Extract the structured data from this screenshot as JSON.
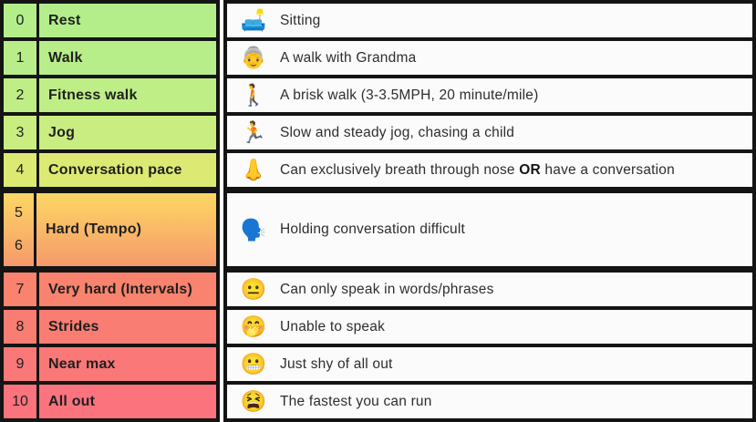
{
  "colors": {
    "border": "#141414",
    "description_cell_bg": "#fbfbfb",
    "page_bg": "#ffffff"
  },
  "table": {
    "rows": [
      {
        "levels": [
          "0"
        ],
        "label": "Rest",
        "bg": "#b4ee8a",
        "emoji": "🛋️",
        "emoji_name": "couch-and-lamp-emoji",
        "desc": [
          {
            "t": "Sitting"
          }
        ]
      },
      {
        "levels": [
          "1"
        ],
        "label": "Walk",
        "bg": "#b8ee89",
        "emoji": "👵",
        "emoji_name": "older-woman-emoji",
        "desc": [
          {
            "t": "A walk with Grandma"
          }
        ]
      },
      {
        "levels": [
          "2"
        ],
        "label": "Fitness walk",
        "bg": "#bfee86",
        "emoji": "🚶",
        "emoji_name": "person-walking-emoji",
        "desc": [
          {
            "t": "A brisk walk (3-3.5MPH, 20 minute/mile)"
          }
        ]
      },
      {
        "levels": [
          "3"
        ],
        "label": "Jog",
        "bg": "#c9ed81",
        "emoji": "🏃",
        "emoji_name": "person-running-emoji",
        "desc": [
          {
            "t": "Slow and steady jog, chasing a child"
          }
        ]
      },
      {
        "levels": [
          "4"
        ],
        "label": "Conversation pace",
        "bg": "#dcea73",
        "thick_after": true,
        "emoji": "👃",
        "emoji_name": "nose-emoji",
        "desc": [
          {
            "t": "Can exclusively breath through nose "
          },
          {
            "t": "OR",
            "bold": true
          },
          {
            "t": " have a conversation"
          }
        ]
      },
      {
        "levels": [
          "5",
          "6"
        ],
        "label": "Hard (Tempo)",
        "bg_top": "#fdd763",
        "bg_bottom": "#f69a6c",
        "double": true,
        "thick_after": true,
        "emoji": "🗣️",
        "emoji_name": "speaking-head-emoji",
        "desc": [
          {
            "t": "Holding conversation difficult"
          }
        ]
      },
      {
        "levels": [
          "7"
        ],
        "label": "Very hard (Intervals)",
        "bg": "#f9836e",
        "emoji": "😐",
        "emoji_name": "neutral-face-emoji",
        "desc": [
          {
            "t": "Can only speak in words/phrases"
          }
        ]
      },
      {
        "levels": [
          "8"
        ],
        "label": "Strides",
        "bg": "#fa7d73",
        "emoji": "🤭",
        "emoji_name": "face-with-hand-over-mouth-emoji",
        "desc": [
          {
            "t": "Unable to speak"
          }
        ]
      },
      {
        "levels": [
          "9"
        ],
        "label": "Near max",
        "bg": "#fa7878",
        "emoji": "😬",
        "emoji_name": "grimacing-face-emoji",
        "desc": [
          {
            "t": "Just shy of all out"
          }
        ]
      },
      {
        "levels": [
          "10"
        ],
        "label": "All out",
        "bg": "#fb737d",
        "emoji": "😫",
        "emoji_name": "tired-face-emoji",
        "desc": [
          {
            "t": "The fastest you can run"
          }
        ]
      }
    ]
  },
  "chart_data": {
    "type": "table",
    "rows": [
      {
        "level": "0",
        "name": "Rest",
        "description": "Sitting"
      },
      {
        "level": "1",
        "name": "Walk",
        "description": "A walk with Grandma"
      },
      {
        "level": "2",
        "name": "Fitness walk",
        "description": "A brisk walk (3-3.5MPH, 20 minute/mile)"
      },
      {
        "level": "3",
        "name": "Jog",
        "description": "Slow and steady jog, chasing a child"
      },
      {
        "level": "4",
        "name": "Conversation pace",
        "description": "Can exclusively breath through nose OR have a conversation"
      },
      {
        "level": "5-6",
        "name": "Hard (Tempo)",
        "description": "Holding conversation difficult"
      },
      {
        "level": "7",
        "name": "Very hard (Intervals)",
        "description": "Can only speak in words/phrases"
      },
      {
        "level": "8",
        "name": "Strides",
        "description": "Unable to speak"
      },
      {
        "level": "9",
        "name": "Near max",
        "description": "Just shy of all out"
      },
      {
        "level": "10",
        "name": "All out",
        "description": "The fastest you can run"
      }
    ],
    "layout": {
      "left_block_columns": [
        "level",
        "name"
      ],
      "right_block_columns": [
        "emoji",
        "description"
      ],
      "color_scale": "green-to-red top-to-bottom"
    }
  }
}
